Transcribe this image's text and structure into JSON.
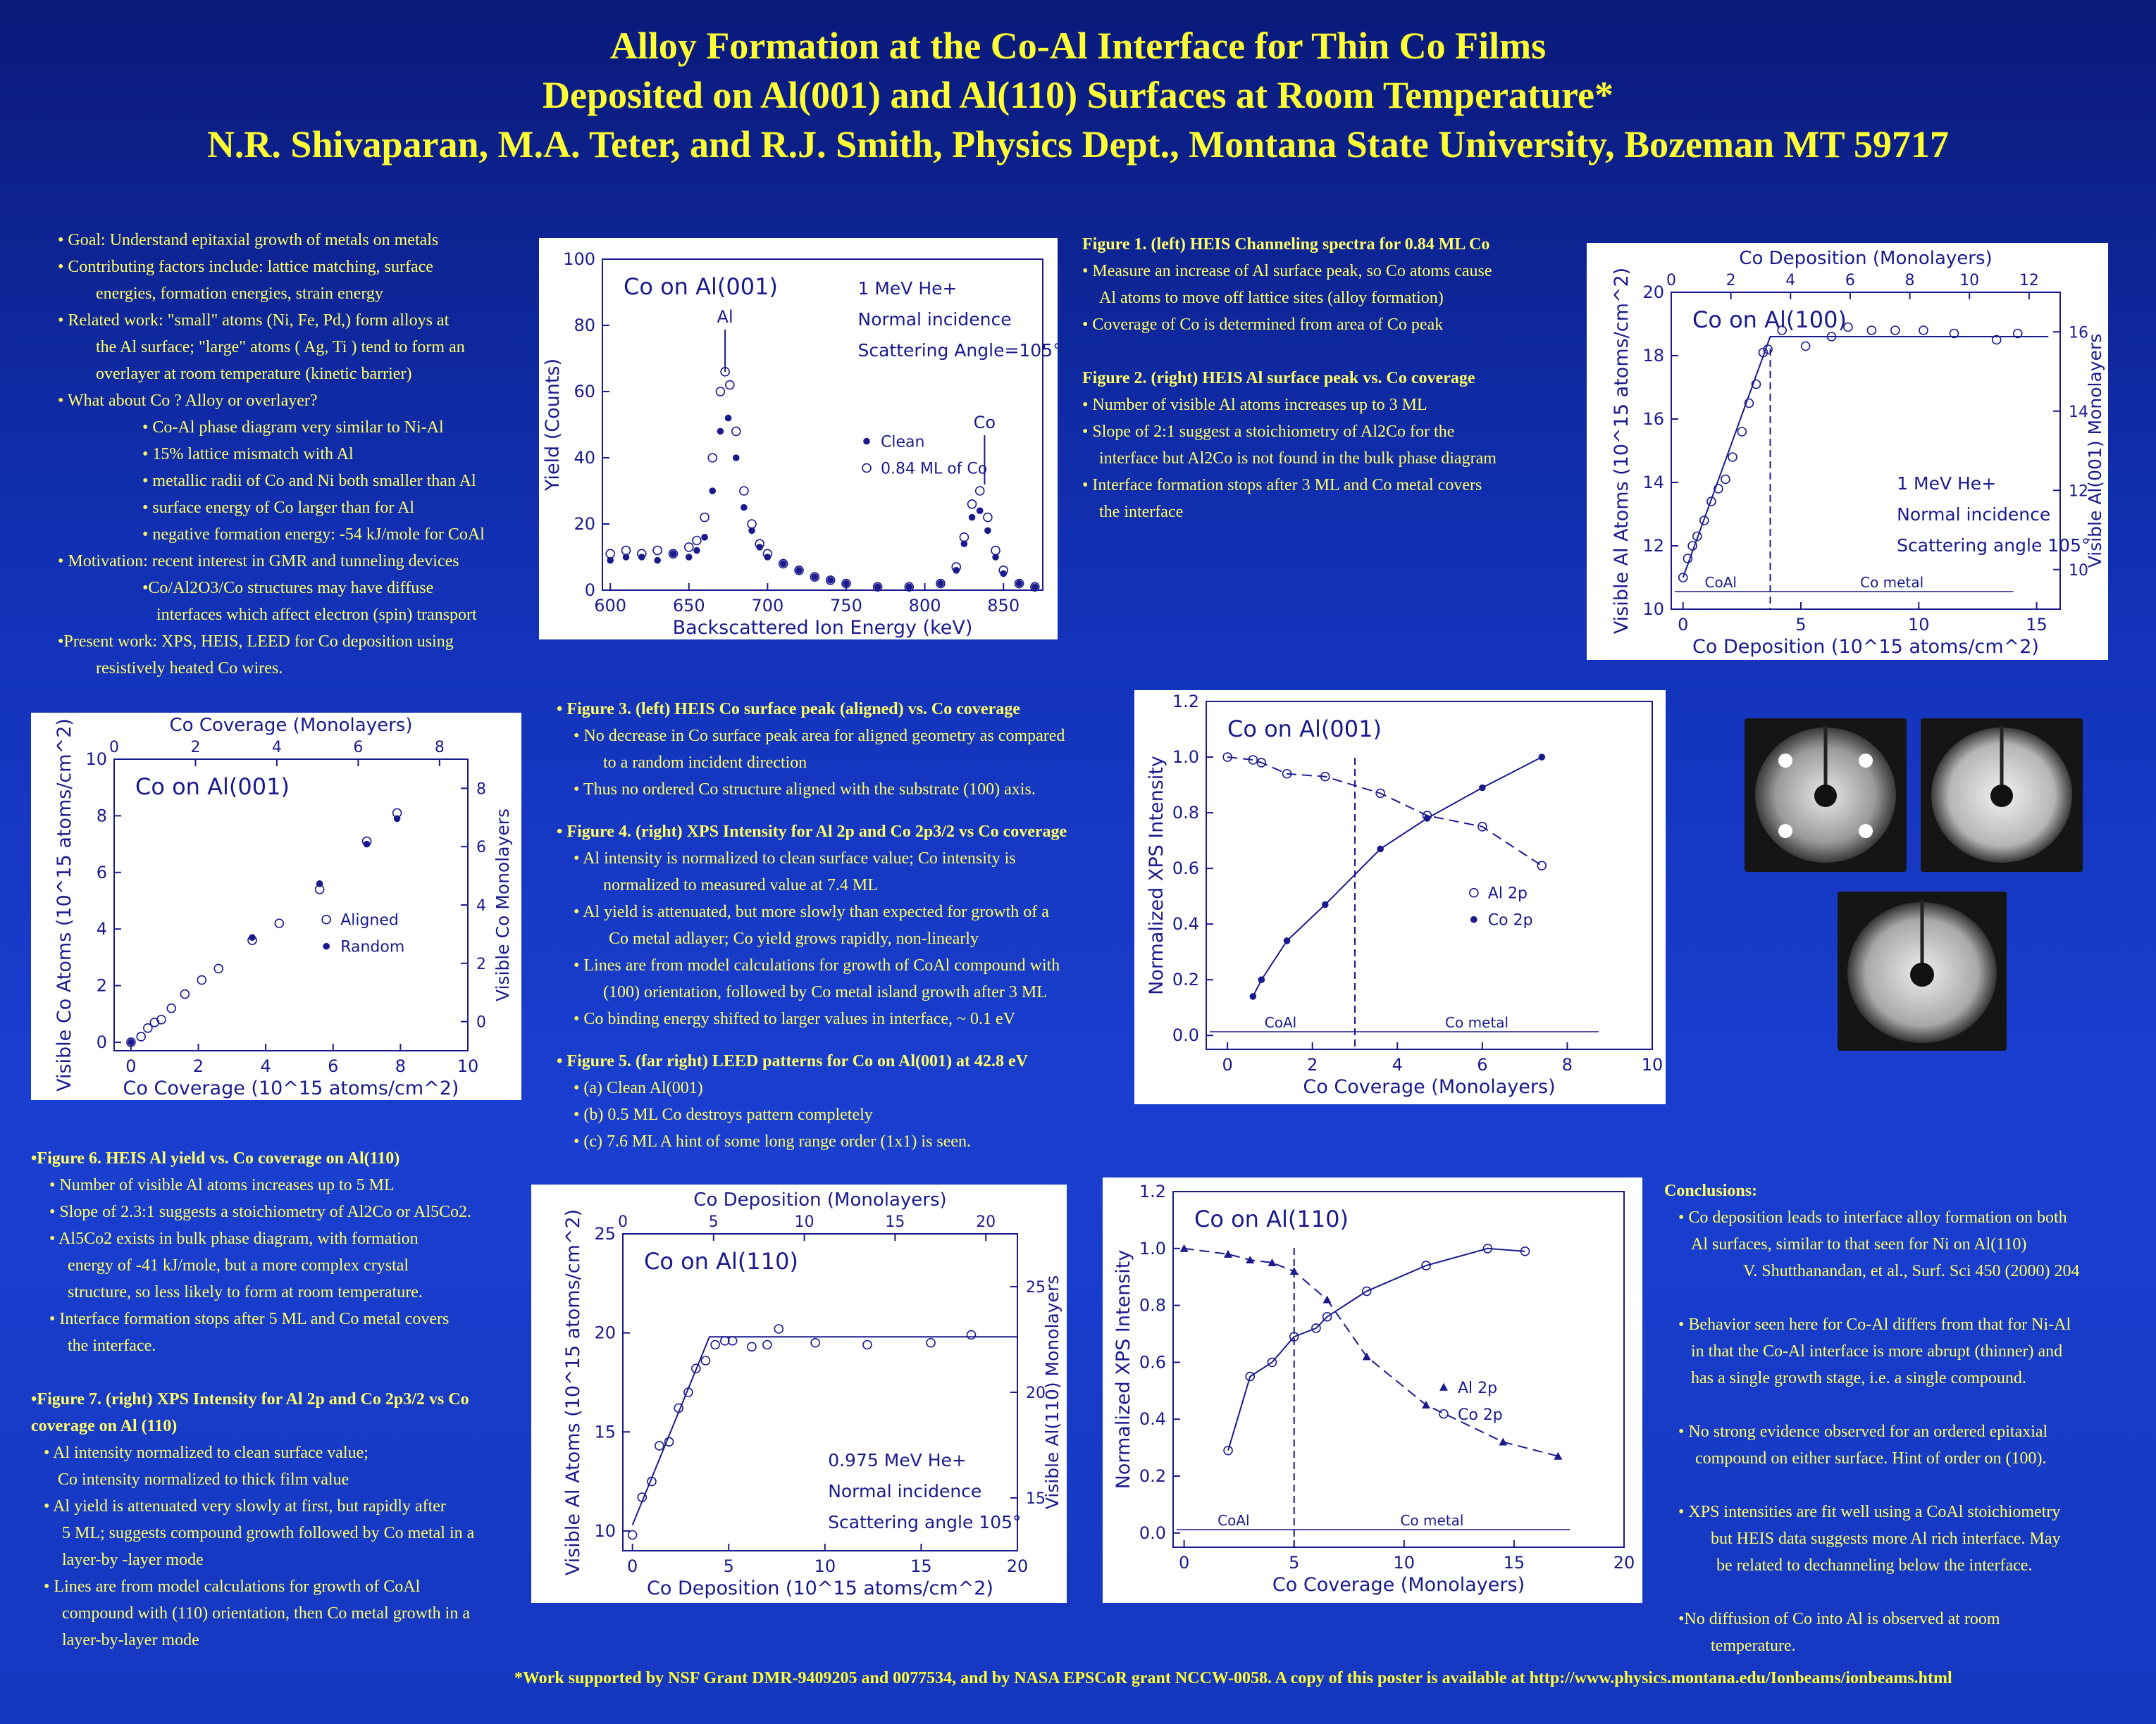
{
  "title": {
    "line1": "Alloy Formation at the Co-Al Interface for Thin Co Films",
    "line2": "Deposited on Al(001) and Al(110) Surfaces at Room Temperature*",
    "line3": "N.R. Shivaparan, M.A. Teter, and R.J. Smith,  Physics Dept., Montana State University, Bozeman MT 59717"
  },
  "intro": [
    "• Goal: Understand epitaxial growth of metals on metals",
    "• Contributing factors include: lattice matching, surface",
    "energies, formation energies, strain energy",
    "• Related work: \"small\" atoms (Ni, Fe, Pd,) form alloys at",
    "the Al surface; \"large\" atoms ( Ag, Ti ) tend to form an",
    "overlayer at room temperature (kinetic barrier)",
    "• What about Co ?  Alloy or overlayer?",
    "• Co-Al phase diagram very similar to Ni-Al",
    "• 15% lattice mismatch with Al",
    "• metallic radii of Co and Ni both smaller than Al",
    "• surface energy of Co larger than for Al",
    "• negative formation energy: -54 kJ/mole for CoAl",
    "• Motivation: recent interest in GMR and tunneling devices",
    "•Co/Al2O3/Co structures may have diffuse",
    "interfaces which affect electron (spin) transport",
    "•Present work: XPS, HEIS, LEED for Co deposition using",
    "resistively heated Co wires."
  ],
  "fig12_text": [
    "Figure 1. (left) HEIS Channeling  spectra  for 0.84 ML Co",
    "• Measure an increase of Al surface peak, so Co atoms cause",
    "Al atoms to move off lattice sites (alloy formation)",
    "• Coverage of Co is determined from area of Co peak",
    "Figure 2. (right) HEIS Al surface peak  vs. Co coverage",
    "• Number of visible Al atoms increases up to 3 ML",
    "• Slope of 2:1 suggest a stoichiometry of Al2Co for the",
    "interface but Al2Co is not found in the bulk phase diagram",
    "• Interface formation stops after 3 ML and Co metal covers",
    "the interface"
  ],
  "fig345_text": [
    "• Figure 3. (left) HEIS Co surface peak (aligned)  vs. Co coverage",
    "• No decrease in Co surface peak area for aligned geometry as compared",
    "to a random incident direction",
    "• Thus no ordered Co structure aligned with the substrate (100) axis.",
    "• Figure 4. (right) XPS Intensity for Al 2p and Co 2p3/2 vs Co coverage",
    "• Al intensity is normalized to clean surface value; Co intensity is",
    "normalized to measured value at 7.4 ML",
    "• Al yield is attenuated, but more slowly than expected for growth of a",
    "Co metal adlayer; Co yield grows rapidly, non-linearly",
    "• Lines are from model calculations for growth of CoAl compound with",
    "(100) orientation, followed by Co metal island growth after 3 ML",
    "• Co binding energy shifted to larger values in interface, ~ 0.1 eV",
    "• Figure 5.  (far right) LEED patterns for Co on Al(001) at 42.8 eV",
    "• (a)  Clean Al(001)",
    "• (b)  0.5 ML Co destroys pattern completely",
    "• (c)  7.6 ML A hint  of some long range order (1x1) is seen."
  ],
  "fig67_text": [
    "•Figure 6. HEIS Al yield  vs. Co coverage on Al(110)",
    "• Number of visible Al atoms increases up to 5 ML",
    "• Slope of 2.3:1 suggests a stoichiometry of Al2Co or Al5Co2.",
    "• Al5Co2 exists in bulk phase diagram, with formation",
    "energy of -41 kJ/mole, but a more complex crystal",
    "structure, so less likely to form at room temperature.",
    "• Interface formation stops after 5 ML and Co metal covers",
    "the interface.",
    "•Figure 7. (right) XPS Intensity  for Al 2p and Co 2p3/2 vs Co",
    "coverage on Al (110)",
    "• Al intensity normalized to clean surface value;",
    "Co intensity normalized to thick film value",
    "• Al yield is attenuated very slowly at first, but rapidly after",
    "5 ML; suggests compound growth followed by Co metal in a",
    "layer-by -layer mode",
    "• Lines are from model calculations for growth of CoAl",
    "compound with (110) orientation, then Co metal growth in a",
    "layer-by-layer mode"
  ],
  "conclusions": [
    "Conclusions:",
    "• Co deposition leads to interface alloy formation on both",
    "Al surfaces, similar to that seen for Ni on Al(110)",
    "V. Shutthanandan, et al., Surf. Sci 450 (2000) 204",
    "• Behavior seen here for Co-Al differs from that for Ni-Al",
    "in that the Co-Al interface is more abrupt (thinner) and",
    "has a single growth stage, i.e. a single compound.",
    "• No strong evidence observed for an ordered epitaxial",
    "compound on either surface.  Hint of order  on (100).",
    "• XPS intensities are fit well using a CoAl stoichiometry",
    "but HEIS data suggests more Al rich interface.  May",
    "be related to dechanneling below the interface.",
    "•No diffusion of Co into Al is observed at room",
    "temperature."
  ],
  "footer": "*Work supported by NSF Grant DMR-9409205 and 0077534, and by NASA EPSCoR grant NCCW-0058.  A copy of this poster is available at http://www.physics.montana.edu/Ionbeams/ionbeams.html",
  "chart_data": [
    {
      "id": "fig1",
      "type": "scatter",
      "title": "Co  on  Al(001)",
      "annotations": [
        "1 MeV He+",
        "Normal incidence",
        "Scattering Angle=105°",
        "Al",
        "Co"
      ],
      "xlabel": "Backscattered Ion Energy (keV)",
      "ylabel": "Yield (Counts)",
      "xlim": [
        595,
        875
      ],
      "ylim": [
        0,
        100
      ],
      "xticks": [
        600,
        650,
        700,
        750,
        800,
        850
      ],
      "yticks": [
        0,
        20,
        40,
        60,
        80,
        100
      ],
      "series": [
        {
          "name": "Clean",
          "marker": "filled",
          "x": [
            600,
            610,
            620,
            630,
            640,
            650,
            655,
            660,
            665,
            670,
            675,
            680,
            685,
            690,
            695,
            700,
            710,
            720,
            730,
            740,
            750,
            770,
            790,
            810,
            820,
            825,
            830,
            835,
            840,
            845,
            850,
            860,
            870
          ],
          "y": [
            9,
            10,
            10,
            9,
            11,
            10,
            12,
            16,
            30,
            48,
            52,
            40,
            25,
            18,
            13,
            10,
            8,
            6,
            4,
            3,
            2,
            1,
            1,
            2,
            6,
            14,
            22,
            24,
            18,
            10,
            5,
            2,
            1
          ]
        },
        {
          "name": "0.84 ML of Co",
          "marker": "open",
          "x": [
            600,
            610,
            620,
            630,
            640,
            650,
            655,
            660,
            665,
            670,
            673,
            676,
            680,
            685,
            690,
            695,
            700,
            710,
            720,
            730,
            740,
            750,
            770,
            790,
            810,
            820,
            825,
            830,
            835,
            840,
            845,
            850,
            860,
            870
          ],
          "y": [
            11,
            12,
            11,
            12,
            11,
            13,
            15,
            22,
            40,
            60,
            66,
            62,
            48,
            30,
            20,
            14,
            11,
            8,
            6,
            4,
            3,
            2,
            1,
            1,
            2,
            7,
            16,
            26,
            30,
            22,
            12,
            6,
            2,
            1
          ]
        }
      ]
    },
    {
      "id": "fig2",
      "type": "scatter",
      "title": "Co  on  Al(100)",
      "annotations": [
        "1 MeV He+",
        "Normal incidence",
        "Scattering angle 105°",
        "CoAl",
        "Co metal"
      ],
      "xlabel": "Co Deposition (10^15 atoms/cm^2)",
      "ylabel": "Visible Al Atoms (10^15 atoms/cm^2)",
      "top_xlabel": "Co Deposition (Monolayers)",
      "right_ylabel": "Visible Al(001) Monolayers",
      "xlim": [
        -0.5,
        16
      ],
      "ylim": [
        10,
        20
      ],
      "xticks": [
        0,
        5,
        10,
        15
      ],
      "yticks": [
        10,
        12,
        14,
        16,
        18,
        20
      ],
      "top_ticks": [
        0,
        2,
        4,
        6,
        8,
        10,
        12
      ],
      "right_ticks": [
        10,
        12,
        14,
        16
      ],
      "series": [
        {
          "name": "data",
          "marker": "open",
          "x": [
            0,
            0.2,
            0.4,
            0.6,
            0.9,
            1.2,
            1.5,
            1.8,
            2.1,
            2.5,
            2.8,
            3.1,
            3.4,
            3.6,
            4.2,
            5.2,
            6.3,
            7.0,
            8.0,
            9.0,
            10.2,
            11.5,
            13.3,
            14.2
          ],
          "y": [
            11.0,
            11.6,
            12.0,
            12.3,
            12.8,
            13.4,
            13.8,
            14.1,
            14.8,
            15.6,
            16.5,
            17.1,
            18.1,
            18.2,
            18.8,
            18.3,
            18.6,
            18.9,
            18.8,
            18.8,
            18.8,
            18.7,
            18.5,
            18.7
          ]
        },
        {
          "name": "model",
          "marker": "line",
          "x": [
            0,
            3.7,
            15.5
          ],
          "y": [
            11.0,
            18.6,
            18.6
          ]
        }
      ]
    },
    {
      "id": "fig3",
      "type": "scatter",
      "title": "Co  on  Al(001)",
      "xlabel": "Co Coverage (10^15 atoms/cm^2)",
      "ylabel": "Visible Co Atoms (10^15 atoms/cm^2)",
      "top_xlabel": "Co Coverage (Monolayers)",
      "right_ylabel": "Visible Co Monolayers",
      "xlim": [
        -0.5,
        10
      ],
      "ylim": [
        -0.3,
        10
      ],
      "xticks": [
        0,
        2,
        4,
        6,
        8,
        10
      ],
      "yticks": [
        0,
        2,
        4,
        6,
        8,
        10
      ],
      "top_ticks": [
        0,
        2,
        4,
        6,
        8
      ],
      "right_ticks": [
        0,
        2,
        4,
        6,
        8
      ],
      "series": [
        {
          "name": "Aligned",
          "marker": "open",
          "x": [
            0,
            0.3,
            0.5,
            0.7,
            0.9,
            1.2,
            1.6,
            2.1,
            2.6,
            3.6,
            4.4,
            5.6,
            7.0,
            7.9
          ],
          "y": [
            0,
            0.2,
            0.5,
            0.7,
            0.8,
            1.2,
            1.7,
            2.2,
            2.6,
            3.6,
            4.2,
            5.4,
            7.1,
            8.1
          ]
        },
        {
          "name": "Random",
          "marker": "filled",
          "x": [
            0,
            3.6,
            5.6,
            7.0,
            7.9
          ],
          "y": [
            0,
            3.7,
            5.6,
            7.0,
            7.9
          ]
        }
      ]
    },
    {
      "id": "fig4",
      "type": "scatter",
      "title": "Co  on  Al(001)",
      "annotations": [
        "CoAl",
        "Co metal"
      ],
      "xlabel": "Co Coverage (Monolayers)",
      "ylabel": "Normalized XPS Intensity",
      "xlim": [
        -0.5,
        10
      ],
      "ylim": [
        -0.05,
        1.2
      ],
      "xticks": [
        0,
        2,
        4,
        6,
        8,
        10
      ],
      "yticks": [
        0.0,
        0.2,
        0.4,
        0.6,
        0.8,
        1.0,
        1.2
      ],
      "series": [
        {
          "name": "Al 2p",
          "marker": "open",
          "x": [
            0,
            0.6,
            0.8,
            1.4,
            2.3,
            3.6,
            4.7,
            6.0,
            7.4
          ],
          "y": [
            1.0,
            0.99,
            0.98,
            0.94,
            0.93,
            0.87,
            0.79,
            0.75,
            0.61
          ]
        },
        {
          "name": "Co 2p",
          "marker": "filled",
          "x": [
            0.6,
            0.8,
            1.4,
            2.3,
            3.6,
            4.7,
            6.0,
            7.4
          ],
          "y": [
            0.14,
            0.2,
            0.34,
            0.47,
            0.67,
            0.78,
            0.89,
            1.0
          ]
        }
      ]
    },
    {
      "id": "fig6",
      "type": "scatter",
      "title": "Co  on  Al(110)",
      "annotations": [
        "0.975 MeV He+",
        "Normal incidence",
        "Scattering angle 105°"
      ],
      "xlabel": "Co Deposition (10^15 atoms/cm^2)",
      "ylabel": "Visible Al Atoms (10^15 atoms/cm^2)",
      "top_xlabel": "Co Deposition (Monolayers)",
      "right_ylabel": "Visible Al(110) Monolayers",
      "xlim": [
        -0.5,
        20
      ],
      "ylim": [
        9,
        25
      ],
      "xticks": [
        0,
        5,
        10,
        15,
        20
      ],
      "yticks": [
        10,
        15,
        20,
        25
      ],
      "top_ticks": [
        0,
        5,
        10,
        15,
        20
      ],
      "right_ticks": [
        15,
        20,
        25
      ],
      "series": [
        {
          "name": "data",
          "marker": "open",
          "x": [
            0,
            0.5,
            1.0,
            1.4,
            1.9,
            2.4,
            2.9,
            3.3,
            3.8,
            4.3,
            4.8,
            5.2,
            6.2,
            7.0,
            7.6,
            9.5,
            12.2,
            15.5,
            17.6
          ],
          "y": [
            9.8,
            11.7,
            12.5,
            14.3,
            14.5,
            16.2,
            17.0,
            18.2,
            18.6,
            19.4,
            19.6,
            19.6,
            19.3,
            19.4,
            20.2,
            19.5,
            19.4,
            19.5,
            19.9
          ]
        },
        {
          "name": "model",
          "marker": "line",
          "x": [
            0,
            4.0,
            20
          ],
          "y": [
            10.3,
            19.8,
            19.8
          ]
        }
      ]
    },
    {
      "id": "fig7",
      "type": "scatter",
      "title": "Co  on  Al(110)",
      "annotations": [
        "CoAl",
        "Co metal"
      ],
      "xlabel": "Co Coverage (Monolayers)",
      "ylabel": "Normalized XPS Intensity",
      "xlim": [
        -0.5,
        20
      ],
      "ylim": [
        -0.05,
        1.2
      ],
      "xticks": [
        0,
        5,
        10,
        15,
        20
      ],
      "yticks": [
        0.0,
        0.2,
        0.4,
        0.6,
        0.8,
        1.0,
        1.2
      ],
      "series": [
        {
          "name": "Al 2p",
          "marker": "filled-triangle",
          "x": [
            0,
            2,
            3,
            4,
            5,
            6.5,
            8.3,
            11,
            14.5,
            17
          ],
          "y": [
            1.0,
            0.98,
            0.96,
            0.95,
            0.92,
            0.82,
            0.62,
            0.45,
            0.32,
            0.27
          ]
        },
        {
          "name": "Co 2p",
          "marker": "open",
          "x": [
            2,
            3,
            4,
            5,
            6,
            6.5,
            8.3,
            11,
            13.8,
            15.5
          ],
          "y": [
            0.29,
            0.55,
            0.6,
            0.69,
            0.72,
            0.76,
            0.85,
            0.94,
            1.0,
            0.99
          ]
        }
      ]
    }
  ],
  "leed": {
    "labels": [
      "(a)",
      "(b)",
      "(c)"
    ]
  }
}
